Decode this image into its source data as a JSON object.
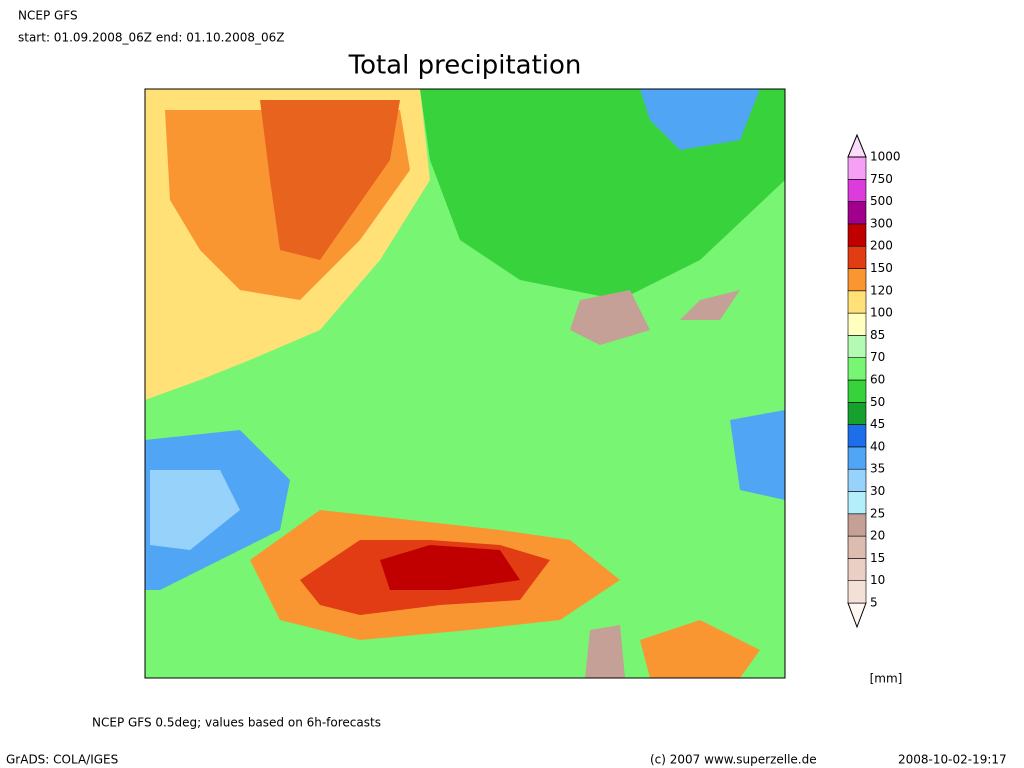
{
  "header": {
    "model": "NCEP GFS",
    "period": "start: 01.09.2008_06Z  end: 01.10.2008_06Z"
  },
  "title": "Total precipitation",
  "legend": {
    "unit": "[mm]",
    "levels": [
      {
        "value": 5,
        "color": "#f3e0d6"
      },
      {
        "value": 10,
        "color": "#ead0c4"
      },
      {
        "value": 15,
        "color": "#ddbcb0"
      },
      {
        "value": 20,
        "color": "#c4a096"
      },
      {
        "value": 25,
        "color": "#b4eefa"
      },
      {
        "value": 30,
        "color": "#96d2fa"
      },
      {
        "value": 35,
        "color": "#50a5f5"
      },
      {
        "value": 40,
        "color": "#1e6eeb"
      },
      {
        "value": 45,
        "color": "#16a02e"
      },
      {
        "value": 50,
        "color": "#37d23c"
      },
      {
        "value": 60,
        "color": "#78f573"
      },
      {
        "value": 70,
        "color": "#b4fab4"
      },
      {
        "value": 85,
        "color": "#ffffc0"
      },
      {
        "value": 100,
        "color": "#ffe178"
      },
      {
        "value": 120,
        "color": "#fa9632"
      },
      {
        "value": 150,
        "color": "#e13c14"
      },
      {
        "value": 200,
        "color": "#c00000"
      },
      {
        "value": 300,
        "color": "#a0008c"
      },
      {
        "value": 500,
        "color": "#dc3cdc"
      },
      {
        "value": 750,
        "color": "#f5a0f5"
      },
      {
        "value": 1000,
        "color": "#fcdcfc"
      }
    ]
  },
  "footer": {
    "note": "NCEP GFS 0.5deg; values based on 6h-forecasts",
    "software": "GrADS: COLA/IGES",
    "copyright": "(c) 2007 www.superzelle.de",
    "timestamp": "2008-10-02-19:17"
  }
}
